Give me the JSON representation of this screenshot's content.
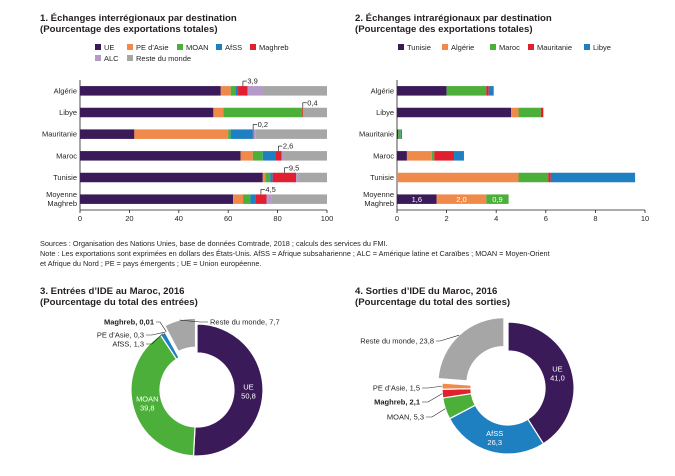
{
  "palette": {
    "UE": "#3b1a5a",
    "PE_Asie": "#f08a4b",
    "MOAN": "#4caf3a",
    "AfSS": "#1e7fc1",
    "Maghreb": "#e0202e",
    "ALC": "#b499c9",
    "Reste": "#a6a6a6",
    "Tunisie": "#3b1a5a",
    "Algerie": "#f08a4b",
    "Maroc": "#4caf3a",
    "Mauritanie": "#e0202e",
    "Libye": "#1e7fc1"
  },
  "chart1": {
    "title_line1": "1. Échanges interrégionaux par destination",
    "title_line2": "(Pourcentage des exportations totales)"
  },
  "chart2": {
    "title_line1": "2. Échanges intrarégionaux par destination",
    "title_line2": "(Pourcentage des exportations totales)"
  },
  "chart3": {
    "title_line1": "3. Entrées d’IDE au Maroc, 2016",
    "title_line2": "(Pourcentage du total des entrées)"
  },
  "chart4": {
    "title_line1": "4. Sorties d’IDE du Maroc, 2016",
    "title_line2": "(Pourcentage du total des sorties)"
  },
  "notes": {
    "line1": "Sources : Organisation des Nations Unies, base de données Comtrade, 2018 ; calculs des services du FMI.",
    "line2": "Note : Les exportations sont exprimées en dollars des États-Unis. AfSS = Afrique subsaharienne ; ALC = Amérique latine et Caraïbes ; MOAN = Moyen-Orient",
    "line3": "et Afrique du Nord ; PE = pays émergents ; UE = Union européenne."
  },
  "chart_data": [
    {
      "type": "bar",
      "orientation": "horizontal",
      "stacked": true,
      "categories": [
        "Algérie",
        "Libye",
        "Mauritanie",
        "Maroc",
        "Tunisie",
        "Moyenne\nMaghreb"
      ],
      "series": [
        {
          "name": "UE",
          "values": [
            57,
            54,
            22,
            65,
            74,
            62
          ]
        },
        {
          "name": "PE d’Asie",
          "values": [
            4,
            4,
            38,
            5,
            1,
            4
          ]
        },
        {
          "name": "MOAN",
          "values": [
            2,
            32,
            1,
            4,
            2,
            3
          ]
        },
        {
          "name": "AfSS",
          "values": [
            1,
            0,
            9,
            5,
            1,
            2
          ]
        },
        {
          "name": "Maghreb",
          "values": [
            3.9,
            0.4,
            0.2,
            2.6,
            9.5,
            4.5
          ]
        },
        {
          "name": "ALC",
          "values": [
            6,
            0,
            1,
            1,
            1,
            2
          ]
        },
        {
          "name": "Reste du monde",
          "values": [
            26.1,
            9.6,
            28.8,
            17.4,
            11.5,
            22.5
          ]
        }
      ],
      "annotations": [
        {
          "category": "Algérie",
          "label": "3,9"
        },
        {
          "category": "Libye",
          "label": "0,4"
        },
        {
          "category": "Mauritanie",
          "label": "0,2"
        },
        {
          "category": "Maroc",
          "label": "2,6"
        },
        {
          "category": "Tunisie",
          "label": "9,5"
        },
        {
          "category": "Moyenne\nMaghreb",
          "label": "4,5"
        }
      ],
      "xlim": [
        0,
        100
      ],
      "xticks": [
        0,
        20,
        40,
        60,
        80,
        100
      ],
      "legend": "top"
    },
    {
      "type": "bar",
      "orientation": "horizontal",
      "stacked": true,
      "categories": [
        "Algérie",
        "Libye",
        "Mauritanie",
        "Maroc",
        "Tunisie",
        "Moyenne\nMaghreb"
      ],
      "series": [
        {
          "name": "Tunisie",
          "values": [
            2.0,
            4.6,
            0.05,
            0.4,
            0,
            1.6
          ]
        },
        {
          "name": "Algérie",
          "values": [
            0,
            0.3,
            0,
            1.0,
            4.9,
            2.0
          ]
        },
        {
          "name": "Maroc",
          "values": [
            1.6,
            0.9,
            0.1,
            0.1,
            1.2,
            0.9
          ]
        },
        {
          "name": "Mauritanie",
          "values": [
            0.1,
            0.1,
            0,
            0.8,
            0.1,
            0
          ]
        },
        {
          "name": "Libye",
          "values": [
            0.2,
            0,
            0.05,
            0.4,
            3.4,
            0
          ]
        }
      ],
      "data_labels": [
        {
          "category": "Moyenne\nMaghreb",
          "series": "Tunisie",
          "label": "1,6"
        },
        {
          "category": "Moyenne\nMaghreb",
          "series": "Algérie",
          "label": "2,0"
        },
        {
          "category": "Moyenne\nMaghreb",
          "series": "Maroc",
          "label": "0,9"
        }
      ],
      "xlim": [
        0,
        10
      ],
      "xticks": [
        0,
        2,
        4,
        6,
        8,
        10
      ],
      "legend": "top"
    },
    {
      "type": "pie",
      "donut": true,
      "slices": [
        {
          "name": "UE",
          "value": 50.8,
          "label": "UE\n50,8",
          "color_key": "UE",
          "label_inside": true
        },
        {
          "name": "MOAN",
          "value": 39.8,
          "label": "MOAN\n39,8",
          "color_key": "MOAN",
          "label_inside": true
        },
        {
          "name": "AfSS",
          "value": 1.3,
          "label": "AfSS, 1,3",
          "color_key": "AfSS"
        },
        {
          "name": "PE d’Asie",
          "value": 0.3,
          "label": "PE d’Asie, 0,3",
          "color_key": "PE_Asie"
        },
        {
          "name": "Maghreb",
          "value": 0.01,
          "label": "Maghreb, 0,01",
          "color_key": "Maghreb",
          "bold": true
        },
        {
          "name": "Reste du monde",
          "value": 7.7,
          "label": "Reste du monde, 7,7",
          "color_key": "Reste",
          "exploded": true
        }
      ]
    },
    {
      "type": "pie",
      "donut": true,
      "slices": [
        {
          "name": "UE",
          "value": 41.0,
          "label": "UE\n41,0",
          "color_key": "UE",
          "label_inside": true
        },
        {
          "name": "AfSS",
          "value": 26.3,
          "label": "AfSS\n26,3",
          "color_key": "AfSS",
          "label_inside": true
        },
        {
          "name": "MOAN",
          "value": 5.3,
          "label": "MOAN, 5,3",
          "color_key": "MOAN"
        },
        {
          "name": "Maghreb",
          "value": 2.1,
          "label": "Maghreb, 2,1",
          "color_key": "Maghreb",
          "bold": true
        },
        {
          "name": "PE d’Asie",
          "value": 1.5,
          "label": "PE d’Asie, 1,5",
          "color_key": "PE_Asie"
        },
        {
          "name": "Reste du monde",
          "value": 23.8,
          "label": "Reste du monde, 23,8",
          "color_key": "Reste",
          "exploded": true
        }
      ]
    }
  ]
}
